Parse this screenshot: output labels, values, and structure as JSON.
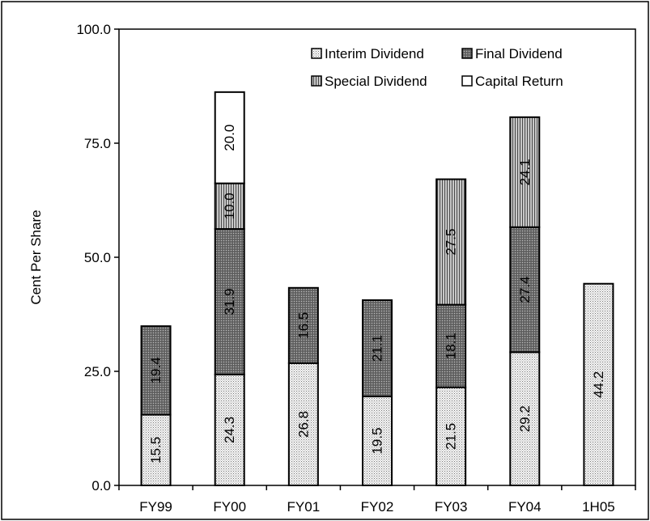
{
  "chart_data": {
    "type": "bar",
    "stacked": true,
    "ylabel": "Cent Per Share",
    "xlabel": "",
    "ylim": [
      0,
      100
    ],
    "yticks": [
      "0.0",
      "25.0",
      "50.0",
      "75.0",
      "100.0"
    ],
    "categories": [
      "FY99",
      "FY00",
      "FY01",
      "FY02",
      "FY03",
      "FY04",
      "1H05"
    ],
    "series": [
      {
        "name": "Interim Dividend",
        "values": [
          15.5,
          24.3,
          26.8,
          19.5,
          21.5,
          29.2,
          44.2
        ],
        "labels": [
          "15.5",
          "24.3",
          "26.8",
          "19.5",
          "21.5",
          "29.2",
          "44.2"
        ]
      },
      {
        "name": "Final Dividend",
        "values": [
          19.4,
          31.9,
          16.5,
          21.1,
          18.1,
          27.4,
          0
        ],
        "labels": [
          "19.4",
          "31.9",
          "16.5",
          "21.1",
          "18.1",
          "27.4",
          ""
        ]
      },
      {
        "name": "Special Dividend",
        "values": [
          0,
          10.0,
          0,
          0,
          27.5,
          24.1,
          0
        ],
        "labels": [
          "",
          "10.0",
          "",
          "",
          "27.5",
          "24.1",
          ""
        ]
      },
      {
        "name": "Capital Return",
        "values": [
          0,
          20.0,
          0,
          0,
          0,
          0,
          0
        ],
        "labels": [
          "",
          "20.0",
          "",
          "",
          "",
          "",
          ""
        ]
      }
    ],
    "legend_position": "top-right",
    "grid": false
  }
}
